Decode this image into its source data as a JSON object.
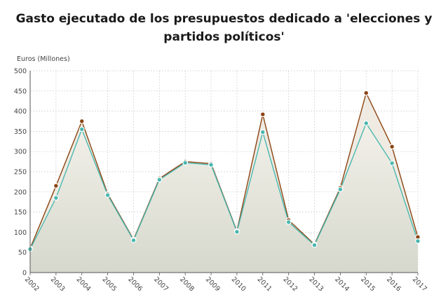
{
  "chart_data": {
    "type": "line",
    "title_line1": "Gasto ejecutado de los presupuestos dedicado a 'elecciones y",
    "title_line2": "partidos políticos'",
    "ylabel": "Euros (Millones)",
    "xlabel": "",
    "ylim": [
      0,
      500
    ],
    "yticks": [
      0,
      50,
      100,
      150,
      200,
      250,
      300,
      350,
      400,
      450,
      500
    ],
    "grid": true,
    "legend": "none",
    "categories": [
      "2002",
      "2003",
      "2004",
      "2005",
      "2006",
      "2007",
      "2008",
      "2009",
      "2010",
      "2011",
      "2012",
      "2013",
      "2014",
      "2015",
      "2016",
      "2017"
    ],
    "series": [
      {
        "color": "#8b4513",
        "fill": "#ede9df",
        "values": [
          60,
          215,
          375,
          195,
          82,
          233,
          275,
          270,
          103,
          392,
          130,
          70,
          210,
          445,
          312,
          88
        ]
      },
      {
        "color": "#4ab8b0",
        "fill": "#d8dbd0",
        "values": [
          58,
          185,
          355,
          192,
          80,
          230,
          272,
          267,
          101,
          348,
          125,
          68,
          206,
          370,
          271,
          78
        ]
      }
    ]
  }
}
